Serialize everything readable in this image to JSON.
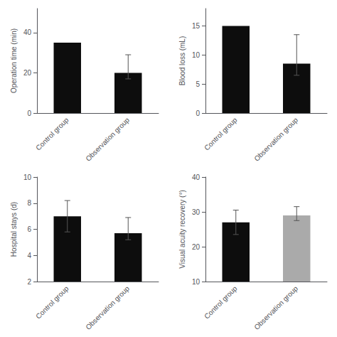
{
  "chart_data": [
    {
      "type": "bar",
      "ylabel": "Operation time (min)",
      "categories": [
        "Control group",
        "Observation group"
      ],
      "values": [
        35,
        20
      ],
      "yerr_low": [
        0,
        3
      ],
      "yerr_high": [
        0,
        9
      ],
      "colors": [
        "#0d0d0d",
        "#0d0d0d"
      ],
      "ylim": [
        0,
        52
      ],
      "yticks": [
        0,
        20,
        40
      ],
      "grid": false
    },
    {
      "type": "bar",
      "ylabel": "Blood loss (mL)",
      "categories": [
        "Control group",
        "Observation group"
      ],
      "values": [
        15,
        8.5
      ],
      "yerr_low": [
        0,
        2
      ],
      "yerr_high": [
        0,
        5
      ],
      "colors": [
        "#0d0d0d",
        "#0d0d0d"
      ],
      "ylim": [
        0,
        18
      ],
      "yticks": [
        0,
        5,
        10,
        15
      ],
      "grid": false
    },
    {
      "type": "bar",
      "ylabel": "Hospital stays (d)",
      "categories": [
        "Control group",
        "Observation group"
      ],
      "values": [
        7.0,
        5.7
      ],
      "yerr_low": [
        1.2,
        0.5
      ],
      "yerr_high": [
        1.2,
        1.2
      ],
      "colors": [
        "#0d0d0d",
        "#0d0d0d"
      ],
      "ylim": [
        2,
        10
      ],
      "yticks": [
        2,
        4,
        6,
        8,
        10
      ],
      "grid": false
    },
    {
      "type": "bar",
      "ylabel": "Visual acuity recovery (°)",
      "categories": [
        "Control group",
        "Observation group"
      ],
      "values": [
        27.0,
        29.0
      ],
      "yerr_low": [
        3.5,
        1.5
      ],
      "yerr_high": [
        3.5,
        2.5
      ],
      "colors": [
        "#0d0d0d",
        "#aaaaaa"
      ],
      "ylim": [
        10,
        40
      ],
      "yticks": [
        10,
        20,
        30,
        40
      ],
      "grid": false
    }
  ]
}
